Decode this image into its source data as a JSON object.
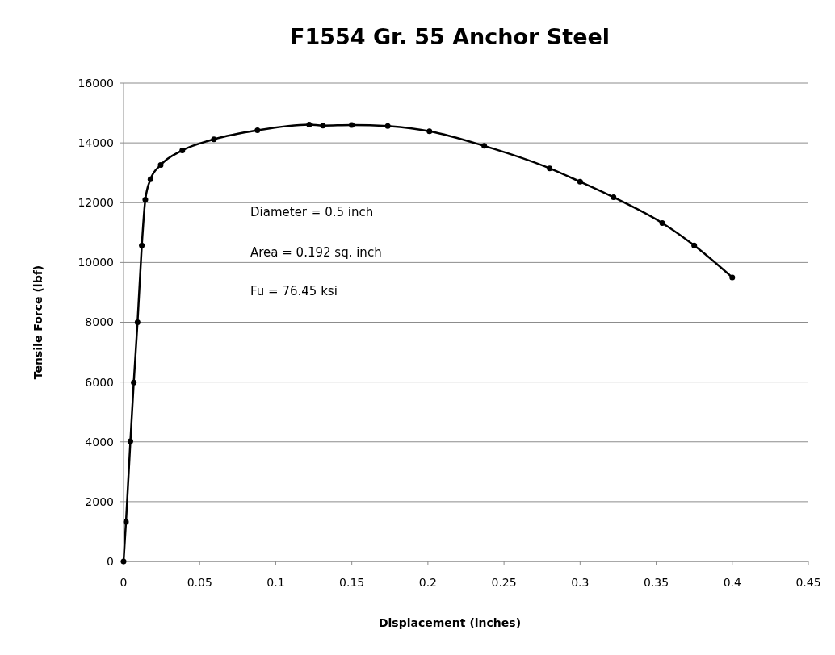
{
  "chart_data": {
    "type": "line",
    "title": "F1554 Gr. 55 Anchor Steel",
    "xlabel": "Displacement (inches)",
    "ylabel": "Tensile Force (lbf)",
    "x": [
      0,
      0.0016,
      0.0045,
      0.0067,
      0.0092,
      0.012,
      0.0143,
      0.0177,
      0.0244,
      0.0386,
      0.0594,
      0.088,
      0.122,
      0.131,
      0.15,
      0.1736,
      0.201,
      0.237,
      0.28,
      0.3,
      0.322,
      0.354,
      0.375,
      0.4
    ],
    "series": [
      {
        "color": "#000000",
        "values": [
          0,
          1320,
          4020,
          5980,
          8000,
          10570,
          12100,
          12780,
          13260,
          13750,
          14120,
          14420,
          14610,
          14580,
          14600,
          14560,
          14390,
          13900,
          13150,
          12700,
          12180,
          11320,
          10570,
          9500
        ]
      }
    ],
    "xlim": [
      0,
      0.45
    ],
    "xticks": [
      0,
      0.05,
      0.1,
      0.15,
      0.2,
      0.25,
      0.3,
      0.35,
      0.4,
      0.45
    ],
    "ylim": [
      0,
      16000
    ],
    "yticks": [
      0,
      2000,
      4000,
      6000,
      8000,
      10000,
      12000,
      14000,
      16000
    ],
    "grid": "y",
    "marker": "circle",
    "line_style": "solid",
    "annotations": [
      "Diameter = 0.5 inch",
      "Area = 0.192 sq. inch",
      "Fu = 76.45 ksi"
    ]
  }
}
